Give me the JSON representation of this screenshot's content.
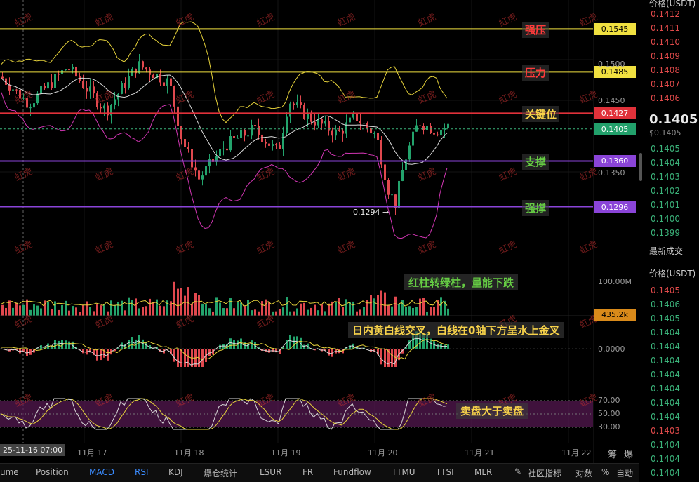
{
  "chart_data": {
    "type": "candlestick",
    "price_axis": {
      "ticks": [
        "0.1500",
        "0.1450",
        "0.1350"
      ],
      "ylim": [
        0.1268,
        0.1568
      ]
    },
    "time_axis": {
      "cursor_label": "25-11-16 07:00",
      "labels": [
        "11月 17",
        "11月 18",
        "11月 19",
        "11月 20",
        "11月 21",
        "11月 22"
      ]
    },
    "levels": [
      {
        "name": "强压",
        "price": "0.1545",
        "line_color": "#f0e040",
        "tag_bg": "#f0e040",
        "tag_fg": "#000000",
        "label_color": "#ff3b3b"
      },
      {
        "name": "压力",
        "price": "0.1485",
        "line_color": "#f0e040",
        "tag_bg": "#f0e040",
        "tag_fg": "#000000",
        "label_color": "#ff3b3b"
      },
      {
        "name": "关键位",
        "price": "0.1427",
        "line_color": "#e0313a",
        "tag_bg": "#e0313a",
        "tag_fg": "#ffffff",
        "label_color": "#f7d24a"
      },
      {
        "name": "支撑",
        "price": "0.1360",
        "line_color": "#8a44d8",
        "tag_bg": "#8a44d8",
        "tag_fg": "#ffffff",
        "label_color": "#66cc44"
      },
      {
        "name": "强撑",
        "price": "0.1296",
        "line_color": "#8a44d8",
        "tag_bg": "#8a44d8",
        "tag_fg": "#ffffff",
        "label_color": "#66cc44"
      }
    ],
    "last_price": {
      "value": "0.1405",
      "tag_bg": "#22a06b"
    },
    "low_marker": "0.1294 →",
    "volume": {
      "tick": "100.00M",
      "current": "435.2k",
      "note": "红柱转绿柱，量能下跌"
    },
    "macd": {
      "tick": "0.0000",
      "note": "日内黄白线交叉，白线在0轴下方呈水上金叉"
    },
    "rsi": {
      "ticks": [
        "70.00",
        "50.00",
        "30.00"
      ],
      "note": "卖盘大于卖盘"
    },
    "colors": {
      "up": "#23a36c",
      "down": "#e0484e",
      "ma_white": "#d9d9d9",
      "ma_yellow": "#e6d23a",
      "bb_pink": "#d236b4",
      "rsi_band": "#5a1a55"
    }
  },
  "bottom_tabs": [
    "ume",
    "Position",
    "MACD",
    "RSI",
    "KDJ",
    "爆仓统计",
    "LSUR",
    "FR",
    "Fundflow",
    "TTMU",
    "TTSI",
    "MLR",
    "社区指标",
    "对数",
    "%",
    "自动"
  ],
  "right_icons": {
    "left": "筹",
    "right": "爆"
  },
  "watermark": "虹虎",
  "sidebar": {
    "price_header": "价格(USDT)",
    "asks": [
      "0.1412",
      "0.1411",
      "0.1410",
      "0.1409",
      "0.1408",
      "0.1407",
      "0.1406"
    ],
    "last": "0.1405",
    "last_sub": "$0.1405",
    "bids": [
      "0.1405",
      "0.1404",
      "0.1403",
      "0.1402",
      "0.1401",
      "0.1400",
      "0.1399"
    ],
    "trades_title": "最新成交",
    "trades_header": "价格(USDT)",
    "trades": [
      {
        "p": "0.1405",
        "c": "red"
      },
      {
        "p": "0.1406",
        "c": "green"
      },
      {
        "p": "0.1405",
        "c": "green"
      },
      {
        "p": "0.1404",
        "c": "green"
      },
      {
        "p": "0.1404",
        "c": "green"
      },
      {
        "p": "0.1404",
        "c": "green"
      },
      {
        "p": "0.1404",
        "c": "green"
      },
      {
        "p": "0.1404",
        "c": "green"
      },
      {
        "p": "0.1404",
        "c": "green"
      },
      {
        "p": "0.1404",
        "c": "green"
      },
      {
        "p": "0.1403",
        "c": "red"
      },
      {
        "p": "0.1404",
        "c": "green"
      },
      {
        "p": "0.1404",
        "c": "green"
      },
      {
        "p": "0.1404",
        "c": "green"
      }
    ]
  }
}
